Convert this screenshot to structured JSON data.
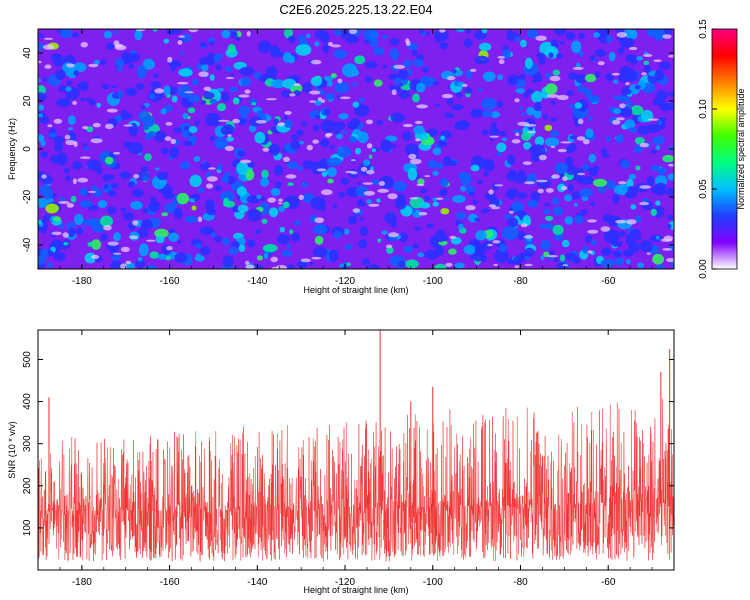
{
  "title": "C2E6.2025.225.13.22.E04",
  "chart_data": [
    {
      "type": "heatmap",
      "xlabel": "Height of straight line (km)",
      "ylabel": "Frequency (Hz)",
      "xlim": [
        -190,
        -45
      ],
      "ylim": [
        -50,
        50
      ],
      "xticks": [
        -180,
        -160,
        -140,
        -120,
        -100,
        -80,
        -60
      ],
      "yticks": [
        -40,
        -20,
        0,
        20,
        40
      ],
      "colorbar": {
        "label": "Normalized spectral amplitude",
        "range": [
          0.0,
          0.15
        ],
        "ticks": [
          "0.00",
          "0.05",
          "0.10",
          "0.15"
        ],
        "colors": [
          "#ffffff",
          "#8000ff",
          "#2040ff",
          "#00c0ff",
          "#00ff80",
          "#40ff00",
          "#ffff00",
          "#ff8000",
          "#ff0000",
          "#ff0080"
        ]
      },
      "grid": false
    },
    {
      "type": "line",
      "xlabel": "Height of straight line (km)",
      "ylabel": "SNR (10 * v/v)",
      "xlim": [
        -190,
        -45
      ],
      "ylim": [
        0,
        570
      ],
      "xticks": [
        -180,
        -160,
        -140,
        -120,
        -100,
        -80,
        -60
      ],
      "yticks": [
        100,
        200,
        300,
        400,
        500
      ],
      "color": "#f03030",
      "envelope": [
        {
          "x": -190,
          "base": 140,
          "peak": 300
        },
        {
          "x": -180,
          "base": 140,
          "peak": 320
        },
        {
          "x": -170,
          "base": 140,
          "peak": 310
        },
        {
          "x": -160,
          "base": 140,
          "peak": 330
        },
        {
          "x": -150,
          "base": 140,
          "peak": 340
        },
        {
          "x": -140,
          "base": 145,
          "peak": 360
        },
        {
          "x": -130,
          "base": 140,
          "peak": 340
        },
        {
          "x": -120,
          "base": 145,
          "peak": 350
        },
        {
          "x": -110,
          "base": 145,
          "peak": 380
        },
        {
          "x": -100,
          "base": 150,
          "peak": 390
        },
        {
          "x": -90,
          "base": 150,
          "peak": 380
        },
        {
          "x": -80,
          "base": 155,
          "peak": 390
        },
        {
          "x": -70,
          "base": 155,
          "peak": 390
        },
        {
          "x": -60,
          "base": 160,
          "peak": 400
        },
        {
          "x": -50,
          "base": 165,
          "peak": 410
        },
        {
          "x": -45,
          "base": 165,
          "peak": 420
        }
      ],
      "spikes": [
        {
          "x": -187.5,
          "y": 410
        },
        {
          "x": -112,
          "y": 570
        },
        {
          "x": -105,
          "y": 400
        },
        {
          "x": -46,
          "y": 525
        },
        {
          "x": -48,
          "y": 470
        },
        {
          "x": -100,
          "y": 435
        }
      ]
    }
  ]
}
